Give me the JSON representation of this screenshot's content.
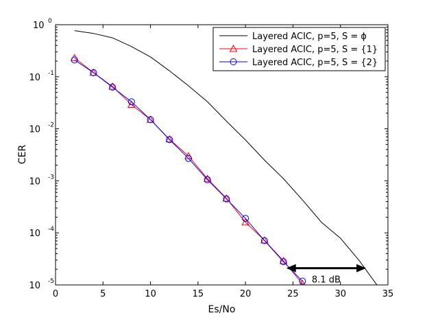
{
  "chart_data": {
    "type": "line",
    "xlabel": "Es/No",
    "ylabel": "CER",
    "xlim": [
      0,
      35
    ],
    "ylim": [
      1e-05,
      1
    ],
    "yscale": "log",
    "grid": false,
    "legend_position": "top-right",
    "x_ticks": [
      0,
      5,
      10,
      15,
      20,
      25,
      30,
      35
    ],
    "x_tick_labels": [
      "0",
      "5",
      "10",
      "15",
      "20",
      "25",
      "30",
      "35"
    ],
    "y_ticks": [
      1e-05,
      0.0001,
      0.001,
      0.01,
      0.1,
      1
    ],
    "y_tick_labels": [
      {
        "base": "10",
        "exp": "-5"
      },
      {
        "base": "10",
        "exp": "-4"
      },
      {
        "base": "10",
        "exp": "-3"
      },
      {
        "base": "10",
        "exp": "-2"
      },
      {
        "base": "10",
        "exp": "-1"
      },
      {
        "base": "10",
        "exp": "0"
      }
    ],
    "series": [
      {
        "name": "Layered ACIC, p=5, S = ϕ",
        "color": "#000000",
        "marker": "none",
        "x": [
          2,
          4,
          6,
          8,
          10,
          12,
          14,
          16,
          18,
          20,
          22,
          24,
          26,
          28,
          30,
          32,
          34
        ],
        "y": [
          0.77,
          0.68,
          0.56,
          0.38,
          0.24,
          0.13,
          0.067,
          0.033,
          0.014,
          0.0061,
          0.0025,
          0.0011,
          0.00043,
          0.00016,
          7.9e-05,
          2.9e-05,
          9.1e-06
        ]
      },
      {
        "name": "Layered ACIC, p=5, S = {1}",
        "color": "#ff0000",
        "marker": "triangle",
        "x": [
          2,
          4,
          6,
          8,
          10,
          12,
          14,
          16,
          18,
          20,
          22,
          24,
          26
        ],
        "y": [
          0.23,
          0.12,
          0.065,
          0.029,
          0.015,
          0.0063,
          0.003,
          0.0011,
          0.00046,
          0.00016,
          7.2e-05,
          2.9e-05,
          1.05e-05
        ]
      },
      {
        "name": "Layered ACIC, p=5, S = {2}",
        "color": "#0000ff",
        "marker": "circle",
        "x": [
          2,
          4,
          6,
          8,
          10,
          12,
          14,
          16,
          18,
          20,
          22,
          24,
          26
        ],
        "y": [
          0.21,
          0.12,
          0.063,
          0.033,
          0.015,
          0.0062,
          0.0027,
          0.00105,
          0.00045,
          0.00019,
          7.1e-05,
          2.8e-05,
          1.18e-05
        ]
      }
    ],
    "annotation": {
      "text": "8.1 dB",
      "from_x": 24.3,
      "to_x": 32.7,
      "y": 2.1e-05
    }
  }
}
